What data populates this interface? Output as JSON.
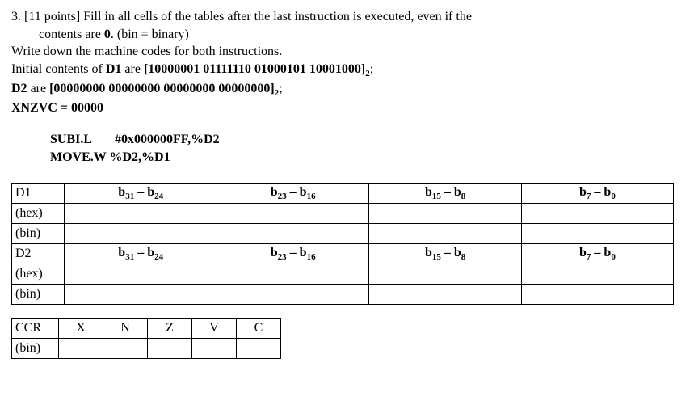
{
  "q": {
    "num": "3.",
    "pts": "[11 points]",
    "line1a": " Fill in all cells of the tables after the last instruction is executed, even if the",
    "line1b": "contents are ",
    "zero_bold": "0",
    "line1c": ". (bin = binary)",
    "line2": "Write down the machine codes for both instructions.",
    "line3a": "Initial contents of ",
    "d1": "D1",
    "line3b": " are ",
    "d1bits": "[10000001 01111110 01000101 10001000]",
    "sub2a": "2",
    "line3c": ";",
    "d2": "D2",
    "line4a": " are ",
    "d2bits": "[00000000 00000000 00000000 00000000]",
    "sub2b": "2",
    "line4b": ";",
    "xnzvc": "XNZVC = 00000"
  },
  "instr": {
    "i1a": "SUBI.L",
    "i1b": "#0x000000FF,%D2",
    "i2": "MOVE.W %D2,%D1"
  },
  "headers": {
    "c1a": "b",
    "c1a_s": "31",
    "c1m": " – b",
    "c1b_s": "24",
    "c2a": "b",
    "c2a_s": "23",
    "c2m": " – b",
    "c2b_s": "16",
    "c3a": "b",
    "c3a_s": "15",
    "c3m": " – b",
    "c3b_s": "8",
    "c4a": "b",
    "c4a_s": "7",
    "c4m": " – b",
    "c4b_s": "0"
  },
  "rows": {
    "D1": "D1",
    "hex": "(hex)",
    "bin": "(bin)",
    "D2": "D2"
  },
  "ccr": {
    "lbl": "CCR",
    "x": "X",
    "n": "N",
    "z": "Z",
    "v": "V",
    "c": "C",
    "bin": "(bin)"
  }
}
